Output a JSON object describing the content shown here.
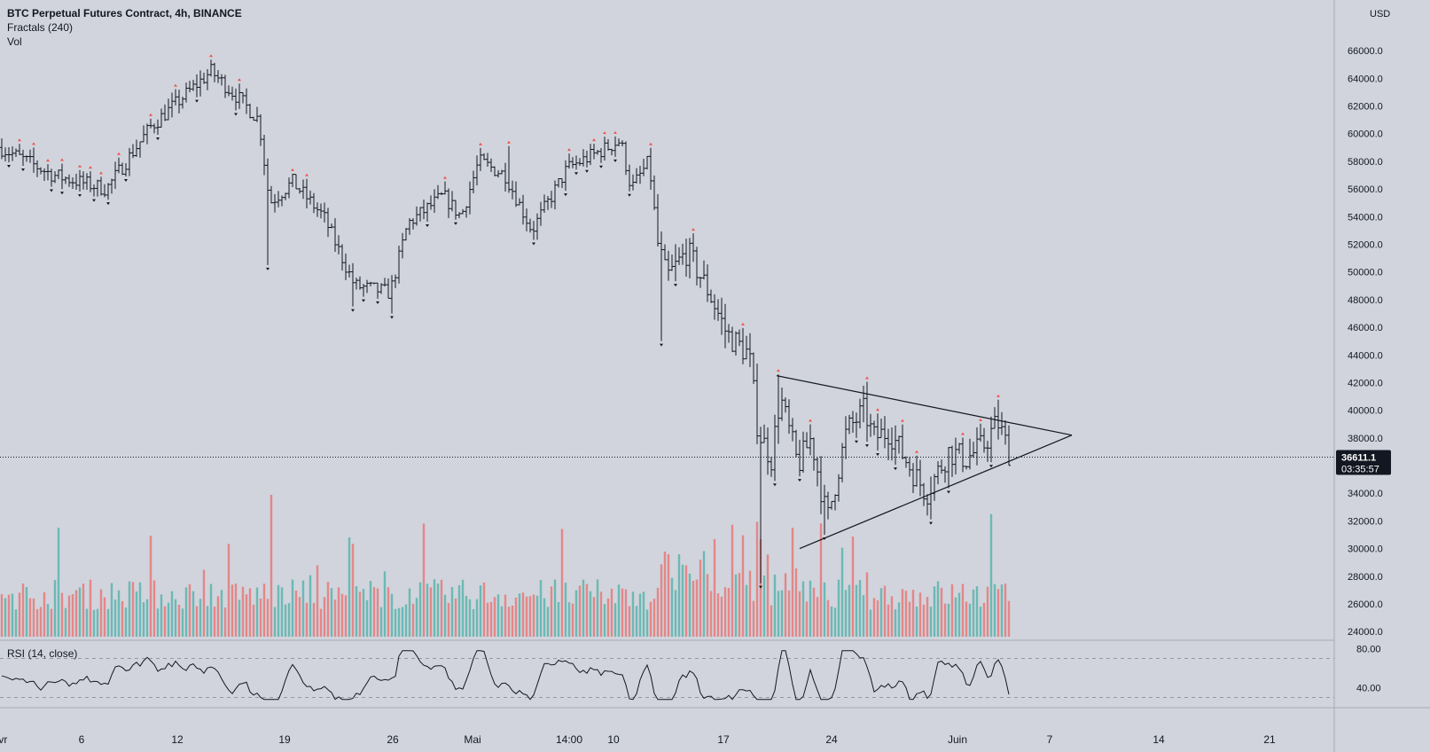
{
  "legend": {
    "title": "BTC Perpetual Futures Contract, 4h, BINANCE",
    "fractals": "Fractals (240)",
    "vol": "Vol"
  },
  "colors": {
    "background": "#d1d4dc",
    "candle": "#131722",
    "fractal_up": "#ef5350",
    "fractal_down": "#131722",
    "vol_up": "#26a69a",
    "vol_down": "#ef5350",
    "rsi_line": "#131722",
    "price_tag_bg": "#131722",
    "price_tag_text": "#ffffff"
  },
  "price_axis": {
    "currency": "USD",
    "ticks": [
      "66000.0",
      "64000.0",
      "62000.0",
      "60000.0",
      "58000.0",
      "56000.0",
      "54000.0",
      "52000.0",
      "50000.0",
      "48000.0",
      "46000.0",
      "44000.0",
      "42000.0",
      "40000.0",
      "38000.0",
      "36000.0",
      "34000.0",
      "32000.0",
      "30000.0",
      "28000.0",
      "26000.0",
      "24000.0"
    ]
  },
  "last_price": {
    "value": "36611.1",
    "countdown": "03:35:57"
  },
  "time_axis": {
    "labels": [
      "avr",
      "6",
      "12",
      "19",
      "26",
      "Mai",
      "14:00",
      "10",
      "17",
      "24",
      "Juin",
      "7",
      "14",
      "21"
    ]
  },
  "rsi": {
    "label": "RSI (14, close)",
    "ticks": [
      "80.00",
      "40.00"
    ],
    "upper_band": 70,
    "lower_band": 30
  },
  "chart_data": {
    "type": "candlestick",
    "symbol": "BTC Perpetual Futures Contract",
    "interval": "4h",
    "exchange": "BINANCE",
    "ylim": [
      23000,
      67500
    ],
    "last_price": 36611.1,
    "key_points": [
      {
        "x": "avr",
        "y": 59000
      },
      {
        "x": "12",
        "y": 64500
      },
      {
        "x": "19",
        "y": 49000
      },
      {
        "x": "26",
        "y": 48500
      },
      {
        "x": "Mai",
        "y": 58000
      },
      {
        "x": "10",
        "y": 59500
      },
      {
        "x": "17",
        "y": 44000
      },
      {
        "x": "17",
        "y": 31000
      },
      {
        "x": "24",
        "y": 33000
      },
      {
        "x": "24",
        "y": 40500
      },
      {
        "x": "Juin",
        "y": 38500
      },
      {
        "x": "Juin",
        "y": 36611.1
      }
    ],
    "trendlines": [
      {
        "name": "upper",
        "from": {
          "x": "17",
          "y": 42500
        },
        "to": {
          "x": "7",
          "y": 38200
        }
      },
      {
        "name": "lower",
        "from": {
          "x": "24",
          "y": 30000
        },
        "to": {
          "x": "7",
          "y": 38200
        }
      }
    ],
    "rsi_ylim": [
      25,
      85
    ]
  }
}
